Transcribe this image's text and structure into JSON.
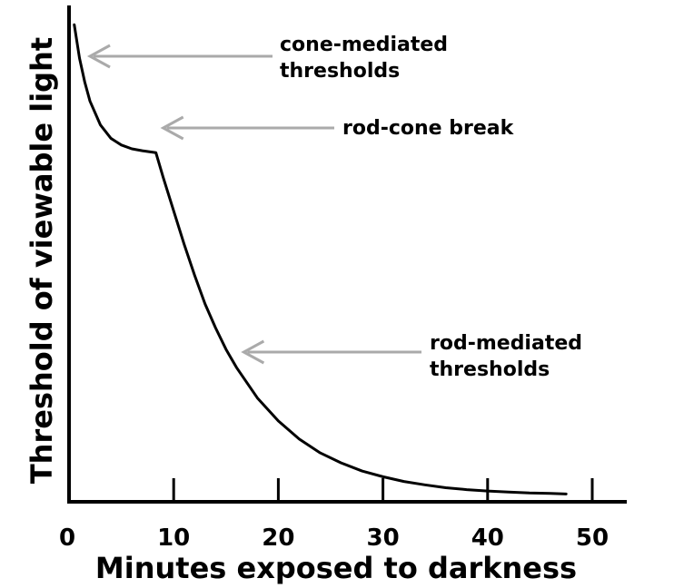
{
  "chart_data": {
    "type": "line",
    "xlabel": "Minutes exposed to darkness",
    "ylabel": "Threshold of viewable light",
    "xlim": [
      0,
      53
    ],
    "ylim": [
      0,
      100
    ],
    "x_ticks": [
      0,
      10,
      20,
      30,
      40,
      50
    ],
    "x_tick_labels": [
      "0",
      "10",
      "20",
      "30",
      "40",
      "50"
    ],
    "y_tick_labels_shown": false,
    "grid": false,
    "legend": "none",
    "series": [
      {
        "color": "#000000",
        "points": [
          {
            "x": 0.5,
            "y": 99
          },
          {
            "x": 1,
            "y": 92
          },
          {
            "x": 1.5,
            "y": 87
          },
          {
            "x": 2,
            "y": 83
          },
          {
            "x": 3,
            "y": 78
          },
          {
            "x": 4,
            "y": 75.2
          },
          {
            "x": 5,
            "y": 73.8
          },
          {
            "x": 6,
            "y": 73
          },
          {
            "x": 7,
            "y": 72.6
          },
          {
            "x": 8.3,
            "y": 72.2
          },
          {
            "x": 9,
            "y": 67
          },
          {
            "x": 10,
            "y": 60
          },
          {
            "x": 11,
            "y": 53
          },
          {
            "x": 12,
            "y": 46.5
          },
          {
            "x": 13,
            "y": 40.5
          },
          {
            "x": 14,
            "y": 35.5
          },
          {
            "x": 15,
            "y": 31
          },
          {
            "x": 16,
            "y": 27.2
          },
          {
            "x": 18,
            "y": 20.8
          },
          {
            "x": 20,
            "y": 16
          },
          {
            "x": 22,
            "y": 12.2
          },
          {
            "x": 24,
            "y": 9.3
          },
          {
            "x": 26,
            "y": 7.2
          },
          {
            "x": 28,
            "y": 5.5
          },
          {
            "x": 30,
            "y": 4.3
          },
          {
            "x": 32,
            "y": 3.3
          },
          {
            "x": 34,
            "y": 2.6
          },
          {
            "x": 36,
            "y": 2
          },
          {
            "x": 38,
            "y": 1.6
          },
          {
            "x": 40,
            "y": 1.3
          },
          {
            "x": 42,
            "y": 1.1
          },
          {
            "x": 44,
            "y": 0.9
          },
          {
            "x": 46,
            "y": 0.8
          },
          {
            "x": 47.5,
            "y": 0.7
          }
        ]
      }
    ],
    "annotations": [
      {
        "text_lines": [
          "cone-mediated",
          "thresholds"
        ],
        "arrow_to": {
          "x": 2,
          "y": 92
        }
      },
      {
        "text_lines": [
          "rod-cone break"
        ],
        "arrow_to": {
          "x": 9,
          "y": 77
        }
      },
      {
        "text_lines": [
          "rod-mediated",
          "thresholds"
        ],
        "arrow_to": {
          "x": 16.7,
          "y": 30
        }
      }
    ],
    "colors": {
      "curve": "#000000",
      "axes": "#000000",
      "arrows": "#aaaaaa"
    }
  }
}
